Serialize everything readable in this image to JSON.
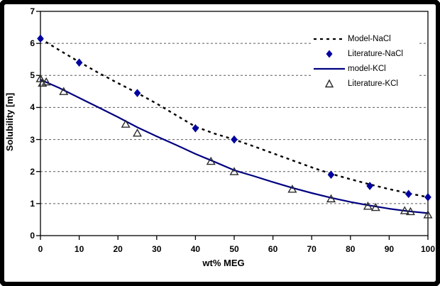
{
  "window": {
    "background": "#ffffff",
    "outer_frame_color": "#000000"
  },
  "chart_data": {
    "type": "line",
    "title": "",
    "xlabel": "wt% MEG",
    "ylabel": "Solubility [m]",
    "xlim": [
      0,
      100
    ],
    "ylim": [
      0,
      7
    ],
    "xticks": [
      0,
      10,
      20,
      30,
      40,
      50,
      60,
      70,
      80,
      90,
      100
    ],
    "yticks": [
      0,
      1,
      2,
      3,
      4,
      5,
      6,
      7
    ],
    "grid": "horizontal-dashed",
    "grid_color": "#595959",
    "axis_color": "#000000",
    "legend_position": "upper-right-inside",
    "series": [
      {
        "name": "Model-NaCl",
        "kind": "line",
        "style": "dashed",
        "color": "#000000",
        "x": [
          0,
          5,
          10,
          15,
          20,
          25,
          30,
          35,
          40,
          45,
          50,
          55,
          60,
          65,
          70,
          75,
          80,
          85,
          90,
          95,
          100
        ],
        "y": [
          6.15,
          5.78,
          5.42,
          5.08,
          4.76,
          4.45,
          4.12,
          3.76,
          3.4,
          3.18,
          3.0,
          2.79,
          2.57,
          2.35,
          2.13,
          1.93,
          1.76,
          1.6,
          1.45,
          1.32,
          1.2
        ]
      },
      {
        "name": "Literature-NaCl",
        "kind": "scatter",
        "marker": "filled-diamond",
        "color": "#0000A0",
        "x": [
          0,
          10,
          25,
          40,
          50,
          75,
          85,
          95,
          100
        ],
        "y": [
          6.15,
          5.4,
          4.45,
          3.35,
          3.0,
          1.9,
          1.55,
          1.3,
          1.2
        ]
      },
      {
        "name": "model-KCl",
        "kind": "line",
        "style": "solid",
        "color": "#000080",
        "x": [
          0,
          5,
          10,
          15,
          20,
          25,
          30,
          35,
          40,
          45,
          50,
          55,
          60,
          65,
          70,
          75,
          80,
          85,
          90,
          95,
          100
        ],
        "y": [
          4.87,
          4.6,
          4.3,
          4.0,
          3.7,
          3.38,
          3.1,
          2.83,
          2.55,
          2.3,
          2.04,
          1.86,
          1.67,
          1.49,
          1.33,
          1.18,
          1.05,
          0.94,
          0.84,
          0.76,
          0.7
        ]
      },
      {
        "name": "Literature-KCl",
        "kind": "scatter",
        "marker": "open-triangle",
        "color": "#2b2b2b",
        "x": [
          0,
          0.5,
          1.5,
          6,
          22,
          25,
          44,
          50,
          65,
          75,
          84.5,
          86.5,
          94,
          95.5,
          100
        ],
        "y": [
          4.9,
          4.76,
          4.8,
          4.5,
          3.48,
          3.2,
          2.32,
          2.0,
          1.45,
          1.15,
          0.92,
          0.88,
          0.78,
          0.75,
          0.65
        ]
      }
    ]
  }
}
